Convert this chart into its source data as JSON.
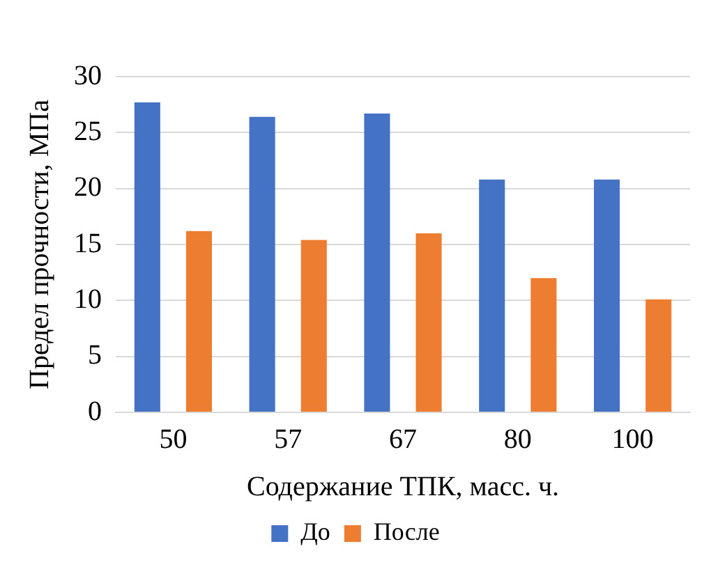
{
  "chart_data": {
    "type": "bar",
    "xlabel": "Содержание ТПК, масс. ч.",
    "ylabel": "Предел прочности, МПа",
    "categories": [
      "50",
      "57",
      "67",
      "80",
      "100"
    ],
    "series": [
      {
        "name": "До",
        "color": "#4472c4",
        "values": [
          27.7,
          26.4,
          26.7,
          20.8,
          20.8
        ]
      },
      {
        "name": "После",
        "color": "#ed7d31",
        "values": [
          16.2,
          15.4,
          16.0,
          12.0,
          10.1
        ]
      }
    ],
    "ylim": [
      0,
      30
    ],
    "yticks": [
      0,
      5,
      10,
      15,
      20,
      25,
      30
    ],
    "grid": "y",
    "legend": "bottom"
  }
}
